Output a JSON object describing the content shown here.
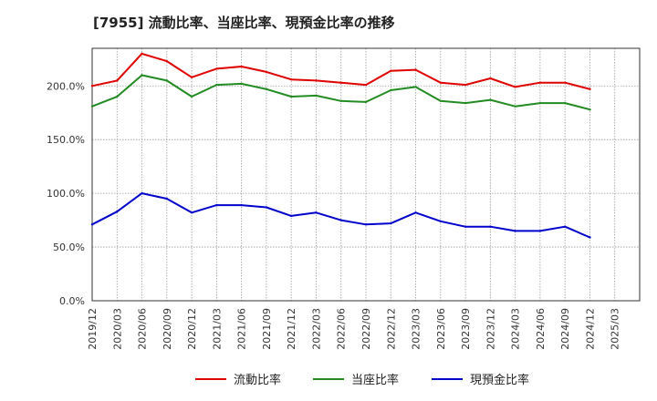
{
  "chart_data": {
    "type": "line",
    "title": "[7955]  流動比率、当座比率、現預金比率の推移",
    "xlabel": "",
    "ylabel": "",
    "ylim": [
      0,
      235
    ],
    "yticks": [
      0,
      50,
      100,
      150,
      200
    ],
    "ytick_labels": [
      "0.0%",
      "50.0%",
      "100.0%",
      "150.0%",
      "200.0%"
    ],
    "grid": true,
    "legend_position": "bottom",
    "x": [
      "2019/12",
      "2020/03",
      "2020/06",
      "2020/09",
      "2020/12",
      "2021/03",
      "2021/06",
      "2021/09",
      "2021/12",
      "2022/03",
      "2022/06",
      "2022/09",
      "2022/12",
      "2023/03",
      "2023/06",
      "2023/09",
      "2023/12",
      "2024/03",
      "2024/06",
      "2024/09",
      "2024/12",
      "2025/03"
    ],
    "series": [
      {
        "name": "流動比率",
        "color": "#e00000",
        "values": [
          200,
          205,
          230,
          223,
          208,
          216,
          218,
          213,
          206,
          205,
          203,
          201,
          214,
          215,
          203,
          201,
          207,
          199,
          203,
          203,
          197,
          null
        ]
      },
      {
        "name": "当座比率",
        "color": "#228b22",
        "values": [
          181,
          190,
          210,
          205,
          190,
          201,
          202,
          197,
          190,
          191,
          186,
          185,
          196,
          199,
          186,
          184,
          187,
          181,
          184,
          184,
          178,
          null
        ]
      },
      {
        "name": "現預金比率",
        "color": "#0000cc",
        "values": [
          71,
          83,
          100,
          95,
          82,
          89,
          89,
          87,
          79,
          82,
          75,
          71,
          72,
          82,
          74,
          69,
          69,
          65,
          65,
          69,
          59,
          null
        ]
      }
    ]
  }
}
